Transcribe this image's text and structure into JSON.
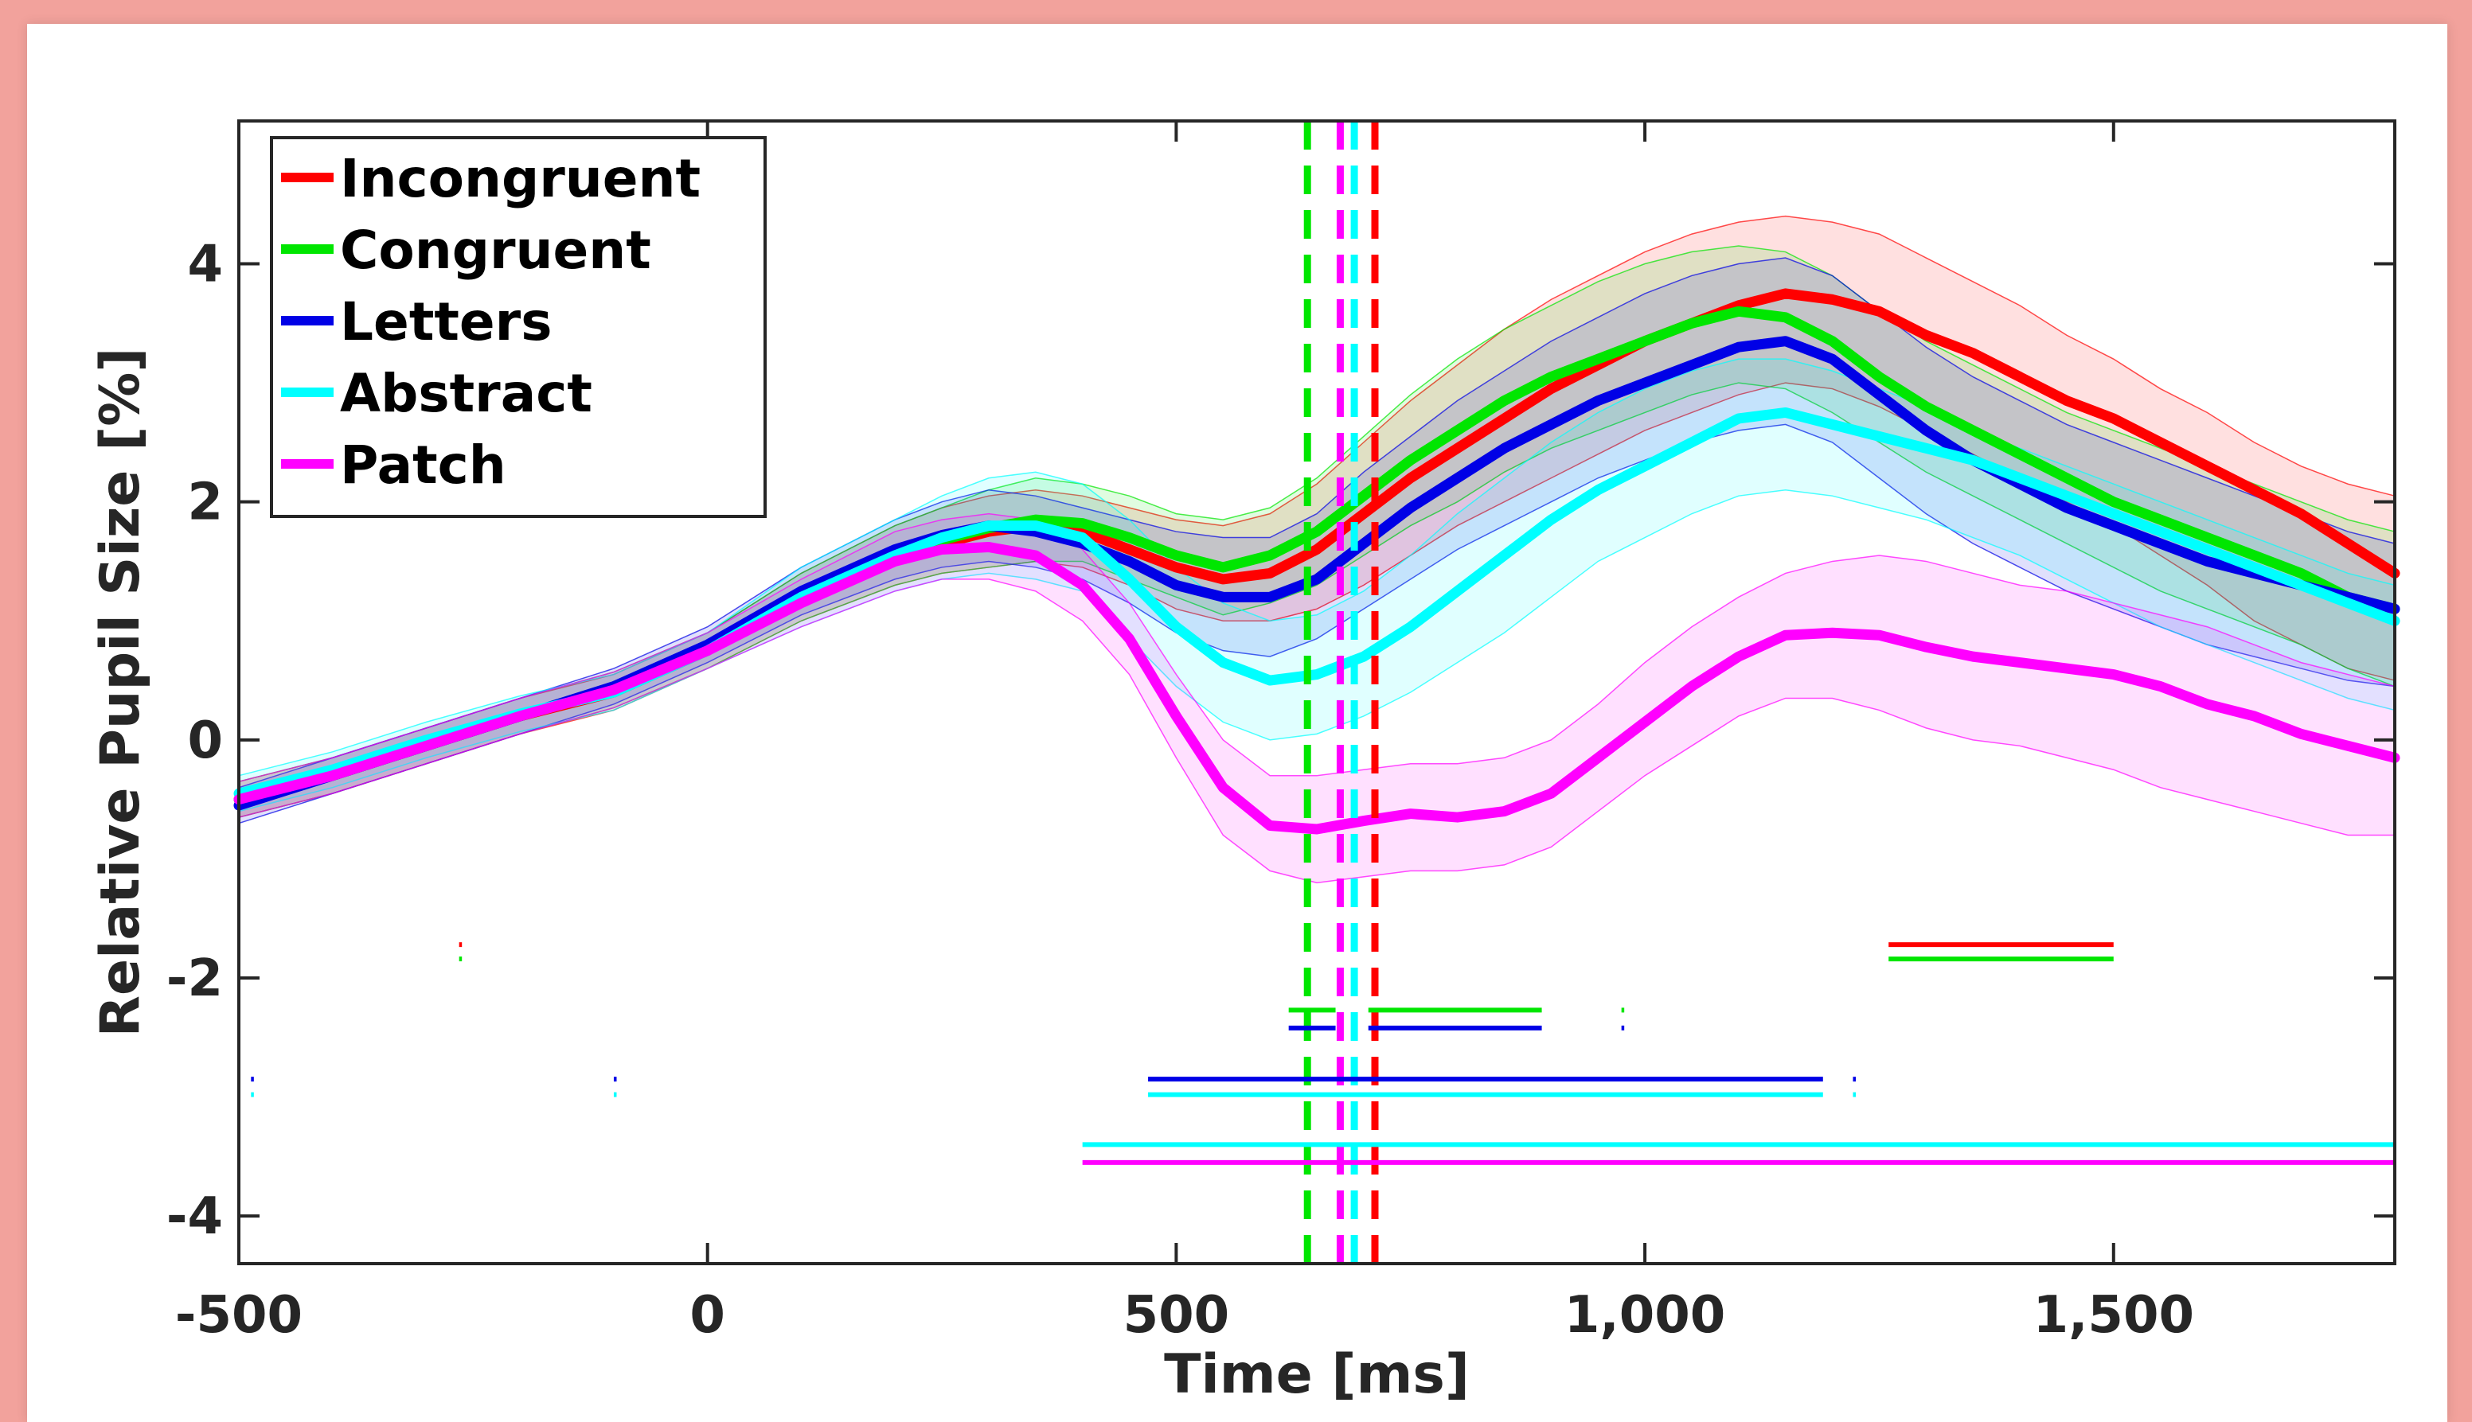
{
  "chart_data": {
    "type": "line",
    "title": "",
    "xlabel": "Time [ms]",
    "ylabel": "Relative Pupil Size [%]",
    "xlim": [
      -500,
      1800
    ],
    "ylim": [
      -4.4,
      5.2
    ],
    "x_ticks": [
      -500,
      0,
      500,
      1000,
      1500
    ],
    "x_tick_labels": [
      "-500",
      "0",
      "500",
      "1,000",
      "1,500"
    ],
    "y_ticks": [
      -4,
      -2,
      0,
      2,
      4
    ],
    "y_tick_labels": [
      "-4",
      "-2",
      "0",
      "2",
      "4"
    ],
    "grid": false,
    "legend_placement": "top-left",
    "x": [
      -500,
      -400,
      -300,
      -200,
      -100,
      0,
      100,
      200,
      250,
      300,
      350,
      400,
      450,
      500,
      550,
      600,
      650,
      700,
      750,
      800,
      850,
      900,
      950,
      1000,
      1050,
      1100,
      1150,
      1200,
      1250,
      1300,
      1350,
      1400,
      1450,
      1500,
      1550,
      1600,
      1650,
      1700,
      1750,
      1800
    ],
    "series": [
      {
        "name": "Incongruent",
        "color": "#ff0000",
        "values": [
          -0.5,
          -0.3,
          -0.05,
          0.2,
          0.4,
          0.75,
          1.2,
          1.55,
          1.65,
          1.75,
          1.8,
          1.75,
          1.6,
          1.45,
          1.35,
          1.4,
          1.6,
          1.9,
          2.2,
          2.45,
          2.7,
          2.95,
          3.15,
          3.35,
          3.5,
          3.65,
          3.75,
          3.7,
          3.6,
          3.4,
          3.25,
          3.05,
          2.85,
          2.7,
          2.5,
          2.3,
          2.1,
          1.9,
          1.65,
          1.4
        ],
        "upper": [
          -0.35,
          -0.15,
          0.1,
          0.35,
          0.55,
          0.9,
          1.4,
          1.8,
          1.95,
          2.05,
          2.1,
          2.05,
          1.95,
          1.85,
          1.8,
          1.9,
          2.15,
          2.5,
          2.85,
          3.15,
          3.45,
          3.7,
          3.9,
          4.1,
          4.25,
          4.35,
          4.4,
          4.35,
          4.25,
          4.05,
          3.85,
          3.65,
          3.4,
          3.2,
          2.95,
          2.75,
          2.5,
          2.3,
          2.15,
          2.05
        ],
        "lower": [
          -0.65,
          -0.45,
          -0.2,
          0.05,
          0.25,
          0.6,
          1.0,
          1.3,
          1.4,
          1.45,
          1.5,
          1.45,
          1.3,
          1.1,
          1.0,
          1.0,
          1.1,
          1.3,
          1.55,
          1.8,
          2.0,
          2.2,
          2.4,
          2.6,
          2.75,
          2.9,
          3.0,
          2.95,
          2.8,
          2.6,
          2.4,
          2.2,
          2.0,
          1.8,
          1.55,
          1.3,
          1.0,
          0.8,
          0.6,
          0.5
        ]
      },
      {
        "name": "Congruent",
        "color": "#00e600",
        "values": [
          -0.5,
          -0.3,
          -0.05,
          0.2,
          0.42,
          0.75,
          1.2,
          1.55,
          1.68,
          1.78,
          1.85,
          1.82,
          1.7,
          1.55,
          1.45,
          1.55,
          1.75,
          2.05,
          2.35,
          2.6,
          2.85,
          3.05,
          3.2,
          3.35,
          3.5,
          3.6,
          3.55,
          3.35,
          3.05,
          2.8,
          2.6,
          2.4,
          2.2,
          2.0,
          1.85,
          1.7,
          1.55,
          1.4,
          1.2,
          1.1
        ],
        "upper": [
          -0.35,
          -0.15,
          0.1,
          0.35,
          0.57,
          0.9,
          1.4,
          1.8,
          1.95,
          2.1,
          2.2,
          2.15,
          2.05,
          1.9,
          1.85,
          1.95,
          2.2,
          2.55,
          2.9,
          3.2,
          3.45,
          3.65,
          3.85,
          4.0,
          4.1,
          4.15,
          4.1,
          3.9,
          3.6,
          3.35,
          3.15,
          2.95,
          2.75,
          2.6,
          2.45,
          2.3,
          2.15,
          2.0,
          1.85,
          1.75
        ],
        "lower": [
          -0.65,
          -0.45,
          -0.2,
          0.05,
          0.27,
          0.6,
          1.0,
          1.3,
          1.4,
          1.45,
          1.5,
          1.5,
          1.35,
          1.2,
          1.05,
          1.15,
          1.3,
          1.55,
          1.8,
          2.0,
          2.25,
          2.45,
          2.6,
          2.75,
          2.9,
          3.0,
          2.95,
          2.75,
          2.5,
          2.25,
          2.05,
          1.85,
          1.65,
          1.45,
          1.25,
          1.1,
          0.95,
          0.8,
          0.6,
          0.45
        ]
      },
      {
        "name": "Letters",
        "color": "#0000e6",
        "values": [
          -0.55,
          -0.3,
          -0.05,
          0.2,
          0.45,
          0.8,
          1.25,
          1.6,
          1.72,
          1.8,
          1.75,
          1.65,
          1.5,
          1.3,
          1.2,
          1.2,
          1.35,
          1.65,
          1.95,
          2.2,
          2.45,
          2.65,
          2.85,
          3.0,
          3.15,
          3.3,
          3.35,
          3.2,
          2.9,
          2.6,
          2.35,
          2.15,
          1.95,
          1.8,
          1.65,
          1.5,
          1.4,
          1.3,
          1.2,
          1.1
        ],
        "upper": [
          -0.4,
          -0.15,
          0.1,
          0.35,
          0.6,
          0.95,
          1.45,
          1.85,
          2.0,
          2.1,
          2.05,
          1.95,
          1.85,
          1.75,
          1.7,
          1.7,
          1.9,
          2.25,
          2.55,
          2.85,
          3.1,
          3.35,
          3.55,
          3.75,
          3.9,
          4.0,
          4.05,
          3.9,
          3.6,
          3.3,
          3.05,
          2.85,
          2.65,
          2.5,
          2.35,
          2.2,
          2.05,
          1.9,
          1.75,
          1.65
        ],
        "lower": [
          -0.7,
          -0.45,
          -0.2,
          0.05,
          0.3,
          0.65,
          1.05,
          1.35,
          1.45,
          1.5,
          1.45,
          1.35,
          1.15,
          0.9,
          0.75,
          0.7,
          0.85,
          1.1,
          1.35,
          1.6,
          1.8,
          2.0,
          2.2,
          2.35,
          2.5,
          2.6,
          2.65,
          2.5,
          2.2,
          1.9,
          1.65,
          1.45,
          1.25,
          1.1,
          0.95,
          0.8,
          0.7,
          0.6,
          0.5,
          0.45
        ]
      },
      {
        "name": "Abstract",
        "color": "#00ffff",
        "values": [
          -0.45,
          -0.25,
          0.0,
          0.22,
          0.4,
          0.75,
          1.2,
          1.55,
          1.7,
          1.8,
          1.8,
          1.7,
          1.35,
          0.95,
          0.65,
          0.5,
          0.55,
          0.7,
          0.95,
          1.25,
          1.55,
          1.85,
          2.1,
          2.3,
          2.5,
          2.7,
          2.75,
          2.65,
          2.55,
          2.45,
          2.35,
          2.2,
          2.05,
          1.9,
          1.75,
          1.6,
          1.45,
          1.3,
          1.15,
          1.0
        ],
        "upper": [
          -0.3,
          -0.1,
          0.15,
          0.37,
          0.55,
          0.9,
          1.45,
          1.85,
          2.05,
          2.2,
          2.25,
          2.15,
          1.85,
          1.45,
          1.15,
          1.0,
          1.05,
          1.25,
          1.55,
          1.9,
          2.2,
          2.5,
          2.75,
          2.95,
          3.1,
          3.2,
          3.2,
          3.1,
          2.95,
          2.8,
          2.6,
          2.45,
          2.3,
          2.15,
          2.0,
          1.85,
          1.7,
          1.55,
          1.4,
          1.3
        ],
        "lower": [
          -0.6,
          -0.4,
          -0.15,
          0.07,
          0.25,
          0.6,
          0.95,
          1.25,
          1.35,
          1.4,
          1.35,
          1.25,
          0.85,
          0.45,
          0.15,
          0.0,
          0.05,
          0.2,
          0.4,
          0.65,
          0.9,
          1.2,
          1.5,
          1.7,
          1.9,
          2.05,
          2.1,
          2.05,
          1.95,
          1.85,
          1.7,
          1.55,
          1.35,
          1.15,
          0.95,
          0.8,
          0.65,
          0.5,
          0.35,
          0.25
        ]
      },
      {
        "name": "Patch",
        "color": "#ff00ff",
        "values": [
          -0.5,
          -0.3,
          -0.05,
          0.2,
          0.42,
          0.75,
          1.15,
          1.5,
          1.6,
          1.62,
          1.55,
          1.3,
          0.85,
          0.2,
          -0.4,
          -0.72,
          -0.75,
          -0.68,
          -0.62,
          -0.65,
          -0.6,
          -0.45,
          -0.15,
          0.15,
          0.45,
          0.7,
          0.88,
          0.9,
          0.88,
          0.78,
          0.7,
          0.65,
          0.6,
          0.55,
          0.45,
          0.3,
          0.2,
          0.05,
          -0.05,
          -0.15
        ],
        "upper": [
          -0.35,
          -0.15,
          0.1,
          0.35,
          0.57,
          0.9,
          1.35,
          1.75,
          1.85,
          1.9,
          1.85,
          1.6,
          1.15,
          0.55,
          0.0,
          -0.3,
          -0.3,
          -0.25,
          -0.2,
          -0.2,
          -0.15,
          0.0,
          0.3,
          0.65,
          0.95,
          1.2,
          1.4,
          1.5,
          1.55,
          1.5,
          1.4,
          1.3,
          1.25,
          1.15,
          1.05,
          0.95,
          0.8,
          0.65,
          0.55,
          0.45
        ],
        "lower": [
          -0.65,
          -0.45,
          -0.2,
          0.05,
          0.27,
          0.6,
          0.95,
          1.25,
          1.35,
          1.35,
          1.25,
          1.0,
          0.55,
          -0.15,
          -0.8,
          -1.1,
          -1.2,
          -1.15,
          -1.1,
          -1.1,
          -1.05,
          -0.9,
          -0.6,
          -0.3,
          -0.05,
          0.2,
          0.35,
          0.35,
          0.25,
          0.1,
          0.0,
          -0.05,
          -0.15,
          -0.25,
          -0.4,
          -0.5,
          -0.6,
          -0.7,
          -0.8,
          -0.8
        ]
      }
    ],
    "vertical_markers": [
      {
        "x": 640,
        "color": "#00e600"
      },
      {
        "x": 675,
        "color": "#ff00ff"
      },
      {
        "x": 690,
        "color": "#00ffff"
      },
      {
        "x": 712,
        "color": "#ff0000"
      }
    ],
    "significance_bars": [
      {
        "y": -1.72,
        "x0": -265,
        "x1": -262,
        "color": "#ff0000"
      },
      {
        "y": -1.84,
        "x0": -265,
        "x1": -262,
        "color": "#00e600"
      },
      {
        "y": -1.72,
        "x0": 1260,
        "x1": 1500,
        "color": "#ff0000"
      },
      {
        "y": -1.84,
        "x0": 1260,
        "x1": 1500,
        "color": "#00e600"
      },
      {
        "y": -2.27,
        "x0": 620,
        "x1": 670,
        "color": "#00e600"
      },
      {
        "y": -2.27,
        "x0": 705,
        "x1": 890,
        "color": "#00e600"
      },
      {
        "y": -2.42,
        "x0": 620,
        "x1": 670,
        "color": "#0000e6"
      },
      {
        "y": -2.42,
        "x0": 705,
        "x1": 890,
        "color": "#0000e6"
      },
      {
        "y": -2.27,
        "x0": 975,
        "x1": 978,
        "color": "#00e600"
      },
      {
        "y": -2.42,
        "x0": 975,
        "x1": 978,
        "color": "#0000e6"
      },
      {
        "y": -2.85,
        "x0": -487,
        "x1": -484,
        "color": "#0000e6"
      },
      {
        "y": -2.98,
        "x0": -487,
        "x1": -484,
        "color": "#00ffff"
      },
      {
        "y": -2.85,
        "x0": -100,
        "x1": -97,
        "color": "#0000e6"
      },
      {
        "y": -2.98,
        "x0": -100,
        "x1": -97,
        "color": "#00ffff"
      },
      {
        "y": -2.85,
        "x0": 470,
        "x1": 1190,
        "color": "#0000e6"
      },
      {
        "y": -2.98,
        "x0": 470,
        "x1": 1190,
        "color": "#00ffff"
      },
      {
        "y": -2.85,
        "x0": 1222,
        "x1": 1225,
        "color": "#0000e6"
      },
      {
        "y": -2.98,
        "x0": 1222,
        "x1": 1225,
        "color": "#00ffff"
      },
      {
        "y": -3.4,
        "x0": 400,
        "x1": 1800,
        "color": "#00ffff"
      },
      {
        "y": -3.55,
        "x0": 400,
        "x1": 1800,
        "color": "#ff00ff"
      }
    ]
  }
}
